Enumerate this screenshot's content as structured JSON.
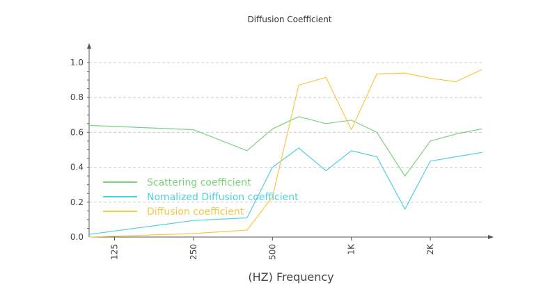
{
  "chart_data": {
    "type": "line",
    "title": "Diffusion Coefficient",
    "xlabel": "(HZ)  Frequency",
    "ylabel": "",
    "x_scale": "log",
    "xlim": [
      100,
      3200
    ],
    "ylim": [
      0,
      1.0
    ],
    "grid": true,
    "legend_position": "lower-left",
    "x_ticks": [
      {
        "value": 125,
        "label": "125"
      },
      {
        "value": 250,
        "label": "250"
      },
      {
        "value": 500,
        "label": "500"
      },
      {
        "value": 1000,
        "label": "1K"
      },
      {
        "value": 2000,
        "label": "2K"
      }
    ],
    "y_ticks": [
      {
        "value": 0.0,
        "label": "0.0"
      },
      {
        "value": 0.2,
        "label": "0.2"
      },
      {
        "value": 0.4,
        "label": "0.4"
      },
      {
        "value": 0.6,
        "label": "0.6"
      },
      {
        "value": 0.8,
        "label": "0.8"
      },
      {
        "value": 1.0,
        "label": "1.0"
      }
    ],
    "series": [
      {
        "name": "Scattering coefficient",
        "color": "#7ed17a",
        "points": [
          [
            100,
            0.64
          ],
          [
            250,
            0.615
          ],
          [
            400,
            0.495
          ],
          [
            500,
            0.62
          ],
          [
            630,
            0.69
          ],
          [
            800,
            0.65
          ],
          [
            1000,
            0.67
          ],
          [
            1250,
            0.6
          ],
          [
            1600,
            0.35
          ],
          [
            2000,
            0.55
          ],
          [
            2500,
            0.59
          ],
          [
            3150,
            0.62
          ]
        ]
      },
      {
        "name": "Nomalized Diffusion coefficient",
        "color": "#4fd0e0",
        "points": [
          [
            100,
            0.015
          ],
          [
            250,
            0.095
          ],
          [
            400,
            0.11
          ],
          [
            500,
            0.4
          ],
          [
            630,
            0.51
          ],
          [
            800,
            0.38
          ],
          [
            1000,
            0.495
          ],
          [
            1250,
            0.46
          ],
          [
            1600,
            0.16
          ],
          [
            2000,
            0.435
          ],
          [
            2500,
            0.46
          ],
          [
            3150,
            0.485
          ]
        ]
      },
      {
        "name": "Diffusion coefficient",
        "color": "#f7c846",
        "points": [
          [
            100,
            0.0
          ],
          [
            250,
            0.02
          ],
          [
            400,
            0.04
          ],
          [
            500,
            0.23
          ],
          [
            630,
            0.87
          ],
          [
            800,
            0.915
          ],
          [
            1000,
            0.615
          ],
          [
            1250,
            0.935
          ],
          [
            1600,
            0.94
          ],
          [
            2000,
            0.91
          ],
          [
            2500,
            0.89
          ],
          [
            3150,
            0.96
          ]
        ]
      }
    ]
  }
}
